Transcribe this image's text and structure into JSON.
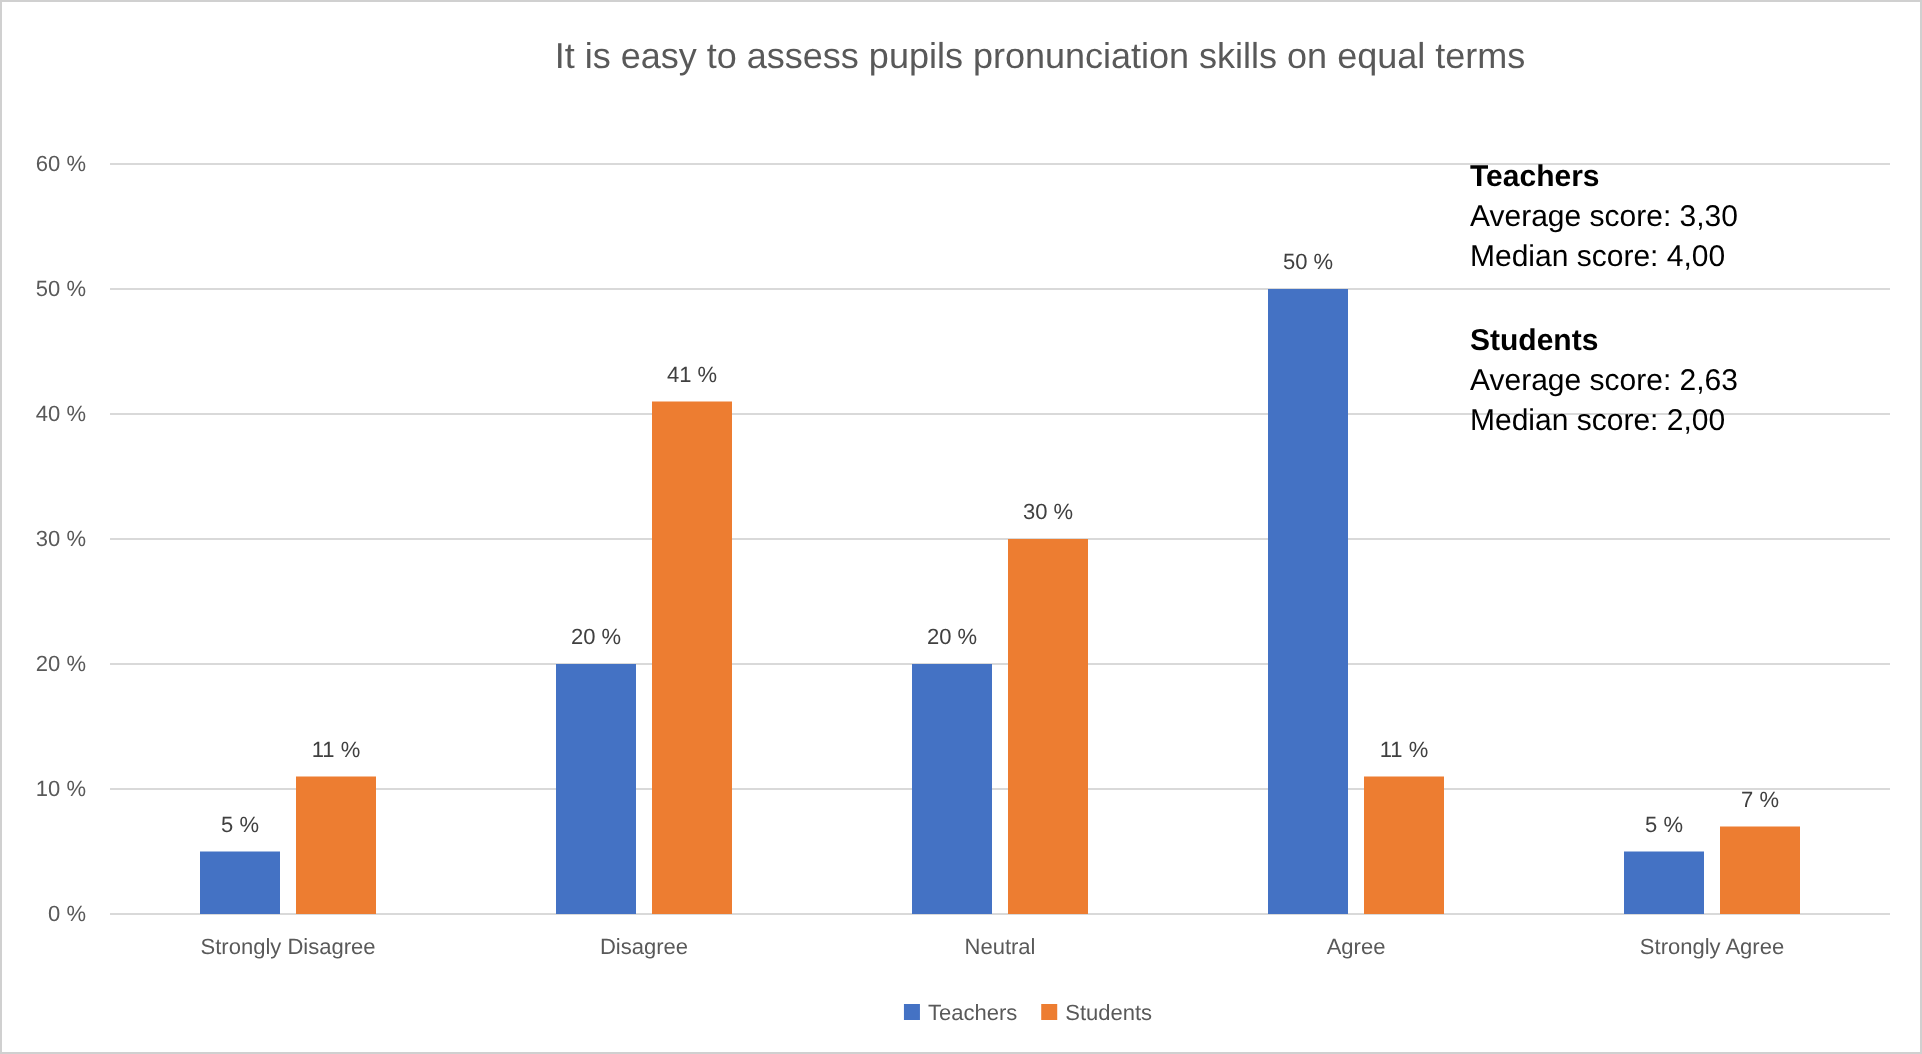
{
  "chart_data": {
    "type": "bar",
    "title": "It is easy to assess pupils pronunciation skills on equal terms",
    "categories": [
      "Strongly Disagree",
      "Disagree",
      "Neutral",
      "Agree",
      "Strongly Agree"
    ],
    "series": [
      {
        "name": "Teachers",
        "color": "#4472c4",
        "values": [
          5,
          20,
          20,
          50,
          5
        ],
        "value_labels": [
          "5 %",
          "20 %",
          "20 %",
          "50 %",
          "5 %"
        ]
      },
      {
        "name": "Students",
        "color": "#ed7d31",
        "values": [
          11,
          41,
          30,
          11,
          7
        ],
        "value_labels": [
          "11 %",
          "41 %",
          "30 %",
          "11 %",
          "7 %"
        ]
      }
    ],
    "ylim": [
      0,
      60
    ],
    "yticks": [
      {
        "value": 0,
        "label": "0 %"
      },
      {
        "value": 10,
        "label": "10 %"
      },
      {
        "value": 20,
        "label": "20 %"
      },
      {
        "value": 30,
        "label": "30 %"
      },
      {
        "value": 40,
        "label": "40 %"
      },
      {
        "value": 50,
        "label": "50 %"
      },
      {
        "value": 60,
        "label": "60 %"
      }
    ],
    "grid": "y",
    "legend": "bottom",
    "annotations": [
      "Teachers",
      "Average score: 3,30",
      "Median score: 4,00",
      "Students",
      "Average score: 2,63",
      "Median score: 2,00"
    ]
  }
}
